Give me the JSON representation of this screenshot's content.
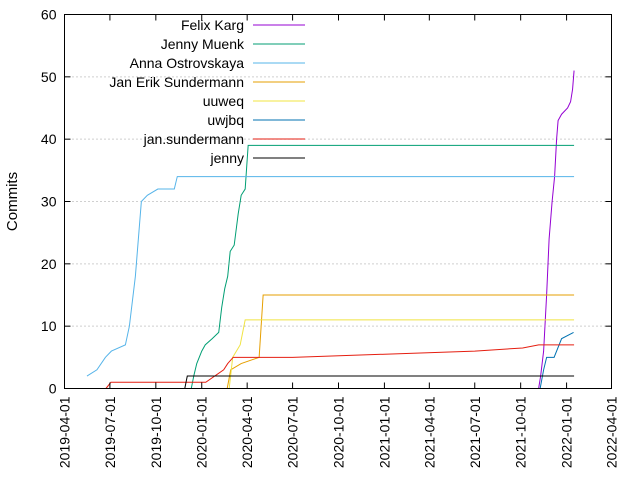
{
  "chart_data": {
    "type": "line",
    "title": "",
    "xlabel": "",
    "ylabel": "Commits",
    "xlim": [
      "2019-04-01",
      "2022-04-01"
    ],
    "ylim": [
      0,
      60
    ],
    "y_ticks": [
      0,
      10,
      20,
      30,
      40,
      50,
      60
    ],
    "x_ticks": [
      "2019-04-01",
      "2019-07-01",
      "2019-10-01",
      "2020-01-01",
      "2020-04-01",
      "2020-07-01",
      "2020-10-01",
      "2021-01-01",
      "2021-04-01",
      "2021-07-01",
      "2021-10-01",
      "2022-01-01",
      "2022-04-01"
    ],
    "grid": "dotted horizontal",
    "legend_position": "top-left",
    "series": [
      {
        "name": "Felix Karg",
        "color": "#9400d3",
        "points": [
          [
            "2021-11-06",
            0
          ],
          [
            "2021-11-10",
            2
          ],
          [
            "2021-11-16",
            6
          ],
          [
            "2021-11-22",
            15
          ],
          [
            "2021-11-27",
            24
          ],
          [
            "2021-12-03",
            30
          ],
          [
            "2021-12-08",
            34
          ],
          [
            "2021-12-12",
            40
          ],
          [
            "2021-12-15",
            43
          ],
          [
            "2021-12-22",
            44
          ],
          [
            "2022-01-03",
            45
          ],
          [
            "2022-01-09",
            46
          ],
          [
            "2022-01-13",
            48
          ],
          [
            "2022-01-16",
            51
          ]
        ]
      },
      {
        "name": "Jenny Muenk",
        "color": "#009e73",
        "points": [
          [
            "2019-12-11",
            0
          ],
          [
            "2019-12-16",
            2
          ],
          [
            "2019-12-22",
            4
          ],
          [
            "2020-01-01",
            6
          ],
          [
            "2020-01-08",
            7
          ],
          [
            "2020-01-22",
            8
          ],
          [
            "2020-02-04",
            9
          ],
          [
            "2020-02-10",
            13
          ],
          [
            "2020-02-16",
            16
          ],
          [
            "2020-02-22",
            18
          ],
          [
            "2020-02-27",
            22
          ],
          [
            "2020-03-06",
            23
          ],
          [
            "2020-03-14",
            28
          ],
          [
            "2020-03-20",
            31
          ],
          [
            "2020-03-28",
            32
          ],
          [
            "2020-04-03",
            39
          ],
          [
            "2022-01-16",
            39
          ]
        ]
      },
      {
        "name": "Anna Ostrovskaya",
        "color": "#56b4e9",
        "points": [
          [
            "2019-05-16",
            2
          ],
          [
            "2019-06-05",
            3
          ],
          [
            "2019-06-22",
            5
          ],
          [
            "2019-07-04",
            6
          ],
          [
            "2019-08-01",
            7
          ],
          [
            "2019-08-09",
            10
          ],
          [
            "2019-08-15",
            14
          ],
          [
            "2019-08-21",
            18
          ],
          [
            "2019-08-27",
            24
          ],
          [
            "2019-09-02",
            30
          ],
          [
            "2019-09-14",
            31
          ],
          [
            "2019-10-05",
            32
          ],
          [
            "2019-11-07",
            32
          ],
          [
            "2019-11-13",
            34
          ],
          [
            "2022-01-16",
            34
          ]
        ]
      },
      {
        "name": "Jan Erik Sundermann",
        "color": "#e69f00",
        "points": [
          [
            "2020-02-21",
            0
          ],
          [
            "2020-02-28",
            3
          ],
          [
            "2020-03-20",
            4
          ],
          [
            "2020-04-25",
            5
          ],
          [
            "2020-05-03",
            15
          ],
          [
            "2022-01-16",
            15
          ]
        ]
      },
      {
        "name": "uuweq",
        "color": "#f0e442",
        "points": [
          [
            "2020-02-25",
            0
          ],
          [
            "2020-03-03",
            5
          ],
          [
            "2020-03-18",
            7
          ],
          [
            "2020-03-28",
            11
          ],
          [
            "2022-01-16",
            11
          ]
        ]
      },
      {
        "name": "uwjbq",
        "color": "#0072b2",
        "points": [
          [
            "2021-11-09",
            0
          ],
          [
            "2021-11-16",
            3
          ],
          [
            "2021-11-22",
            5
          ],
          [
            "2021-12-07",
            5
          ],
          [
            "2021-12-22",
            8
          ],
          [
            "2022-01-15",
            9
          ]
        ]
      },
      {
        "name": "jan.sundermann",
        "color": "#e51e10",
        "points": [
          [
            "2019-06-23",
            0
          ],
          [
            "2019-07-03",
            1
          ],
          [
            "2019-12-04",
            1
          ],
          [
            "2020-01-09",
            1
          ],
          [
            "2020-02-14",
            3
          ],
          [
            "2020-02-22",
            4
          ],
          [
            "2020-03-04",
            5
          ],
          [
            "2020-07-01",
            5
          ],
          [
            "2021-01-01",
            5.5
          ],
          [
            "2021-07-01",
            6
          ],
          [
            "2021-10-05",
            6.5
          ],
          [
            "2021-11-06",
            7
          ],
          [
            "2022-01-16",
            7
          ]
        ]
      },
      {
        "name": "jenny",
        "color": "#000000",
        "points": [
          [
            "2019-11-28",
            0
          ],
          [
            "2019-12-03",
            2
          ],
          [
            "2022-01-16",
            2
          ]
        ]
      }
    ]
  }
}
